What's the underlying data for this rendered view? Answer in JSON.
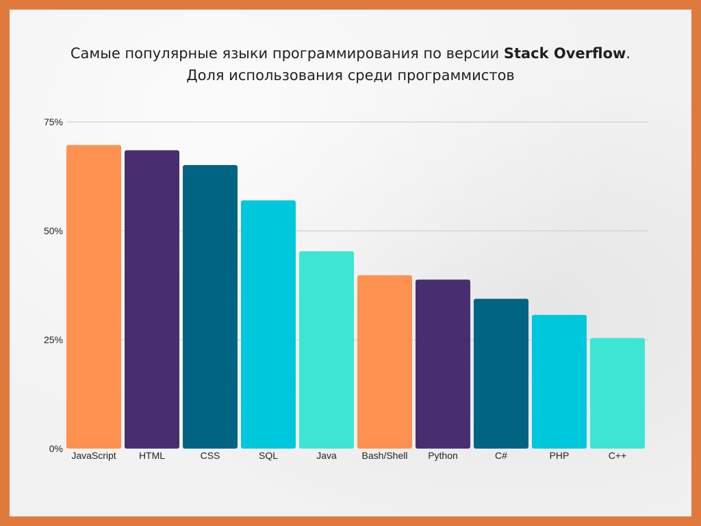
{
  "title": {
    "line1_prefix": "Самые популярные языки программирования по версии ",
    "line1_bold": "Stack Overflow",
    "line1_suffix": ".",
    "line2": "Доля использования среди программистов"
  },
  "chart_data": {
    "type": "bar",
    "title": "Самые популярные языки программирования по версии Stack Overflow. Доля использования среди программистов",
    "categories": [
      "JavaScript",
      "HTML",
      "CSS",
      "SQL",
      "Java",
      "Bash/Shell",
      "Python",
      "C#",
      "PHP",
      "C++"
    ],
    "values": [
      69.7,
      68.5,
      65.1,
      57.0,
      45.3,
      39.8,
      38.8,
      34.4,
      30.7,
      25.4
    ],
    "colors": [
      "#ff9150",
      "#472f6f",
      "#006482",
      "#00c8dc",
      "#3ce6d2",
      "#ff9150",
      "#472f6f",
      "#006482",
      "#00c8dc",
      "#3ce6d2"
    ],
    "y_ticks": [
      "0%",
      "25%",
      "50%",
      "75%"
    ],
    "ylim": [
      0,
      75
    ],
    "grid": true,
    "xlabel": "",
    "ylabel": ""
  }
}
